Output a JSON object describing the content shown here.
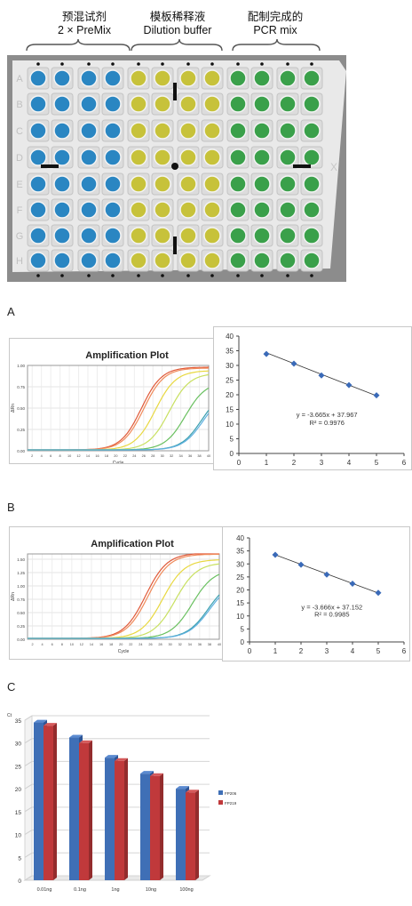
{
  "plate": {
    "headers": [
      {
        "line1": "预混试剂",
        "line2": "2 × PreMix"
      },
      {
        "line1": "模板稀释液",
        "line2": "Dilution buffer"
      },
      {
        "line1": "配制完成的",
        "line2": "PCR mix"
      }
    ],
    "row_letters": [
      "A",
      "B",
      "C",
      "D",
      "E",
      "F",
      "G",
      "H"
    ],
    "side_mark": "X",
    "colors": {
      "premix": "#2a86c2",
      "buffer": "#c7c23a",
      "pcrmix": "#3aa04a",
      "plate": "#e9e9e9",
      "photo_bg": "#8c8c8c"
    }
  },
  "panels": {
    "a": "A",
    "b": "B",
    "c": "C"
  },
  "chart_data": [
    {
      "type": "line",
      "title": "Amplification Plot",
      "xlabel": "Cycle",
      "ylabel": "ΔRn",
      "xlim": [
        1,
        40
      ],
      "ylim": [
        0,
        1.0
      ],
      "yticks": [
        "0.00",
        "0.25",
        "0.50",
        "0.75",
        "1.00"
      ],
      "grid": true,
      "series": [
        {
          "color": "#e05a3a",
          "midpoint": 25.5,
          "plateau": 0.97
        },
        {
          "color": "#f08a5a",
          "midpoint": 26.0,
          "plateau": 0.96
        },
        {
          "color": "#e8d840",
          "midpoint": 28.5,
          "plateau": 0.93
        },
        {
          "color": "#c8e060",
          "midpoint": 31.5,
          "plateau": 0.9
        },
        {
          "color": "#6ac060",
          "midpoint": 35.0,
          "plateau": 0.8
        },
        {
          "color": "#3aa0b0",
          "midpoint": 38.5,
          "plateau": 0.7
        },
        {
          "color": "#60b0e0",
          "midpoint": 38.8,
          "plateau": 0.68
        }
      ]
    },
    {
      "type": "scatter",
      "x": [
        1,
        2,
        3,
        4,
        5
      ],
      "y": [
        33.9,
        30.6,
        26.6,
        23.3,
        19.8
      ],
      "xlim": [
        0,
        6
      ],
      "ylim": [
        0,
        40
      ],
      "xticks": [
        "0",
        "1",
        "2",
        "3",
        "4",
        "5",
        "6"
      ],
      "yticks": [
        "0",
        "5",
        "10",
        "15",
        "20",
        "25",
        "30",
        "35",
        "40"
      ],
      "trendline": {
        "slope": -3.665,
        "intercept": 37.967
      },
      "equation": "y = -3.665x + 37.967",
      "r2": "R² = 0.9976",
      "marker_color": "#3a6ab8"
    },
    {
      "type": "line",
      "title": "Amplification Plot",
      "xlabel": "Cycle",
      "ylabel": "ΔRn",
      "xlim": [
        1,
        40
      ],
      "ylim": [
        0,
        1.6
      ],
      "yticks": [
        "0.00",
        "0.25",
        "0.50",
        "0.75",
        "1.00",
        "1.25",
        "1.50"
      ],
      "grid": true,
      "series": [
        {
          "color": "#e05a3a",
          "midpoint": 25.0,
          "plateau": 1.6
        },
        {
          "color": "#f08a5a",
          "midpoint": 25.5,
          "plateau": 1.58
        },
        {
          "color": "#e8d840",
          "midpoint": 28.5,
          "plateau": 1.48
        },
        {
          "color": "#c8e060",
          "midpoint": 31.0,
          "plateau": 1.42
        },
        {
          "color": "#6ac060",
          "midpoint": 34.5,
          "plateau": 1.3
        },
        {
          "color": "#3aa0b0",
          "midpoint": 37.8,
          "plateau": 1.12
        },
        {
          "color": "#60b0e0",
          "midpoint": 38.0,
          "plateau": 1.08
        }
      ]
    },
    {
      "type": "scatter",
      "x": [
        1,
        2,
        3,
        4,
        5
      ],
      "y": [
        33.5,
        29.7,
        25.9,
        22.4,
        18.9
      ],
      "xlim": [
        0,
        6
      ],
      "ylim": [
        0,
        40
      ],
      "xticks": [
        "0",
        "1",
        "2",
        "3",
        "4",
        "5",
        "6"
      ],
      "yticks": [
        "0",
        "5",
        "10",
        "15",
        "20",
        "25",
        "30",
        "35",
        "40"
      ],
      "trendline": {
        "slope": -3.666,
        "intercept": 37.152
      },
      "equation": "y = -3.666x + 37.152",
      "r2": "R² = 0.9985",
      "marker_color": "#3a6ab8"
    },
    {
      "type": "bar",
      "ylabel": "Ct",
      "categories": [
        "0.01ng",
        "0.1ng",
        "1ng",
        "10ng",
        "100ng"
      ],
      "ylim": [
        0,
        35
      ],
      "yticks": [
        "0",
        "5",
        "10",
        "15",
        "20",
        "25",
        "30",
        "35"
      ],
      "series": [
        {
          "name": "FP206",
          "values": [
            34.5,
            31.2,
            26.8,
            23.3,
            20.0
          ],
          "color": "#3f6fb6"
        },
        {
          "name": "FP219",
          "values": [
            33.8,
            30.0,
            26.1,
            22.8,
            19.2
          ],
          "color": "#c0393b"
        }
      ],
      "legend": "right",
      "grid": true
    }
  ]
}
